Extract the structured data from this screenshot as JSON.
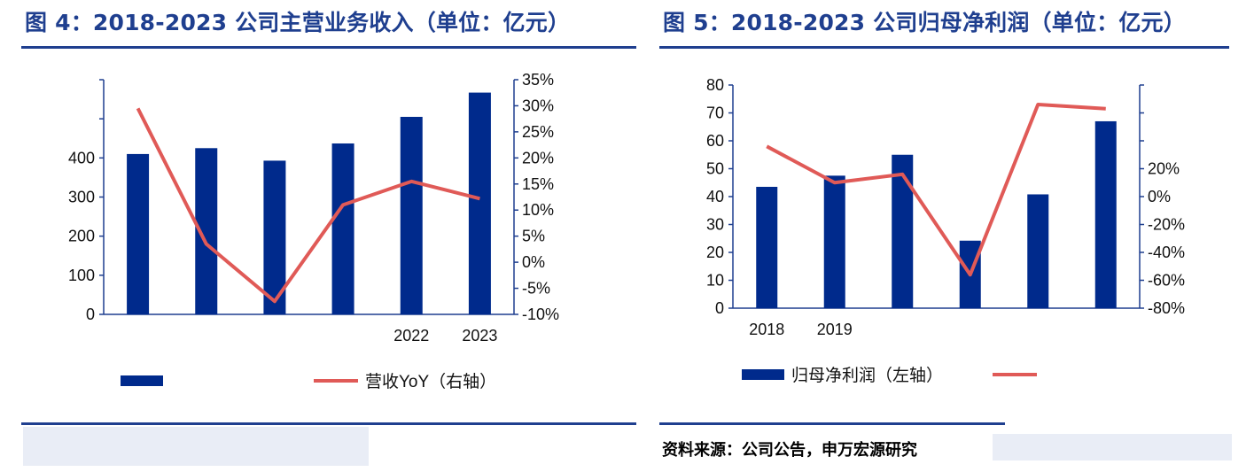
{
  "left_panel": {
    "title": "图 4：2018-2023 公司主营业务收入（单位：亿元）"
  },
  "right_panel": {
    "title": "图 5：2018-2023 公司归母净利润（单位：亿元）"
  },
  "source_text": "资料来源：公司公告，申万宏源研究",
  "colors": {
    "bar": "#002a8c",
    "line": "#e05a57",
    "title": "#1f3f8f",
    "axis": "#1f3f8f"
  },
  "chart_data": [
    {
      "type": "bar",
      "categories": [
        "",
        "",
        "",
        "",
        "2022",
        "2023"
      ],
      "series": [
        {
          "name": "",
          "type": "bar",
          "axis": "left",
          "values": [
            410,
            425,
            393,
            437,
            505,
            567
          ]
        },
        {
          "name": "营收YoY（右轴）",
          "type": "line",
          "axis": "right",
          "values": [
            29.5,
            3.5,
            -7.5,
            11,
            15.5,
            12.2
          ]
        }
      ],
      "left_axis": {
        "ticks": [
          "",
          "",
          "400",
          "300",
          "200",
          "100",
          "0"
        ],
        "ylim": [
          0,
          600
        ]
      },
      "right_axis": {
        "ticks": [
          "35%",
          "30%",
          "25%",
          "20%",
          "15%",
          "10%",
          "5%",
          "0%",
          "-5%",
          "-10%"
        ],
        "ylim": [
          -10,
          35
        ]
      },
      "legend": {
        "bar_label": "",
        "line_label": "营收YoY（右轴）",
        "placement": "bottom"
      }
    },
    {
      "type": "bar",
      "categories": [
        "2018",
        "2019",
        "",
        "",
        "",
        ""
      ],
      "series": [
        {
          "name": "归母净利润（左轴）",
          "type": "bar",
          "axis": "left",
          "values": [
            43.5,
            47.5,
            55,
            24.2,
            40.8,
            67
          ]
        },
        {
          "name": "",
          "type": "line",
          "axis": "right",
          "values": [
            36,
            10,
            16,
            -56,
            66,
            63
          ]
        }
      ],
      "left_axis": {
        "ticks": [
          "80",
          "70",
          "60",
          "50",
          "40",
          "30",
          "20",
          "10",
          "0"
        ],
        "ylim": [
          0,
          80
        ]
      },
      "right_axis": {
        "ticks": [
          "",
          "",
          "",
          "20%",
          "0%",
          "-20%",
          "-40%",
          "-60%",
          "-80%"
        ],
        "ylim": [
          -80,
          80
        ]
      },
      "legend": {
        "bar_label": "归母净利润（左轴）",
        "line_label": "",
        "placement": "bottom"
      }
    }
  ]
}
